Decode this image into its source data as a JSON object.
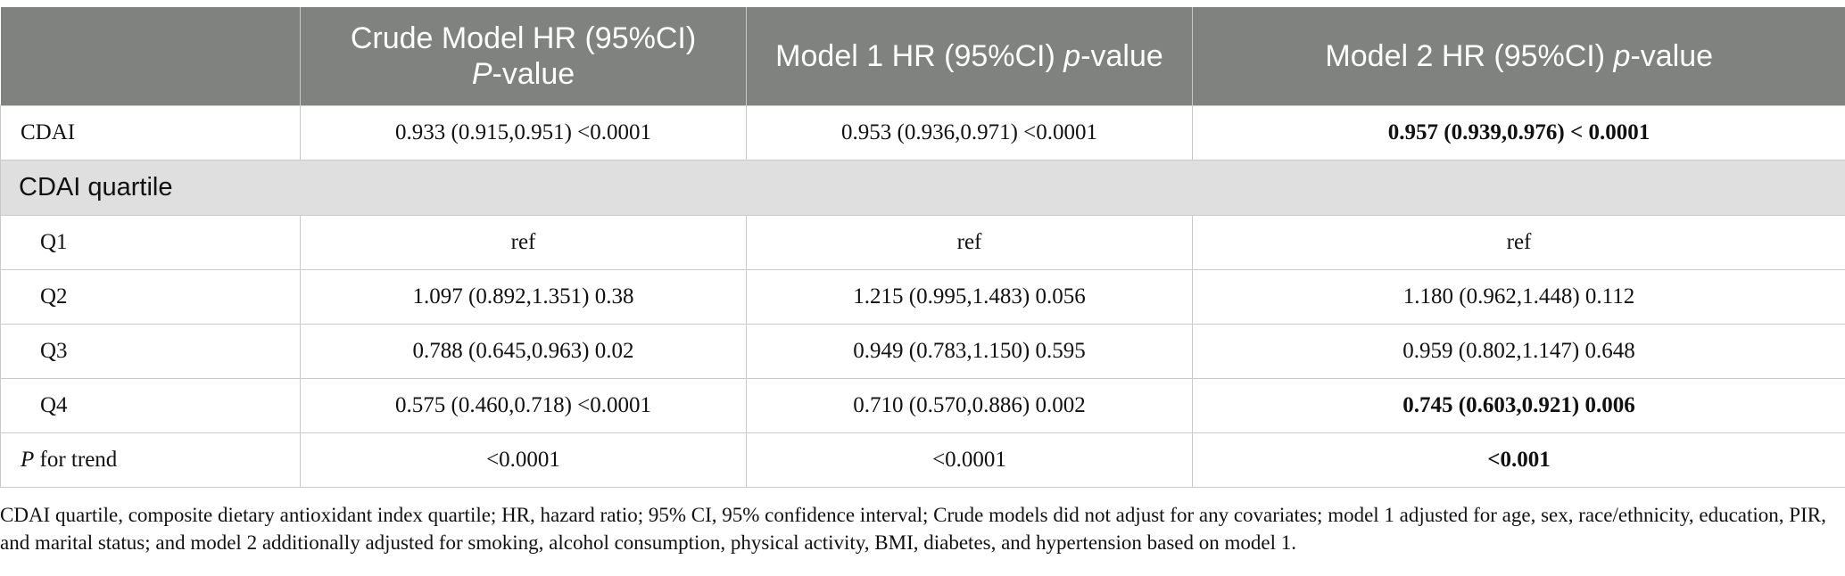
{
  "header": {
    "col0": "",
    "col1_main": "Crude Model HR (95%CI)",
    "col1_p": "P",
    "col1_suffix": "-value",
    "col2_main": "Model 1 HR (95%CI)",
    "col2_p": "p",
    "col2_suffix": "-value",
    "col3_main": "Model 2 HR (95%CI)",
    "col3_p": "p",
    "col3_suffix": "-value"
  },
  "rows": {
    "cdai": {
      "label": "CDAI",
      "crude": "0.933 (0.915,0.951) <0.0001",
      "model1": "0.953 (0.936,0.971) <0.0001",
      "model2": "0.957 (0.939,0.976) < 0.0001"
    },
    "section": "CDAI quartile",
    "q1": {
      "label": "Q1",
      "crude": "ref",
      "model1": "ref",
      "model2": "ref"
    },
    "q2": {
      "label": "Q2",
      "crude": "1.097 (0.892,1.351) 0.38",
      "model1": "1.215 (0.995,1.483) 0.056",
      "model2": "1.180 (0.962,1.448) 0.112"
    },
    "q3": {
      "label": "Q3",
      "crude": "0.788 (0.645,0.963) 0.02",
      "model1": "0.949 (0.783,1.150) 0.595",
      "model2": "0.959 (0.802,1.147) 0.648"
    },
    "q4": {
      "label": "Q4",
      "crude": "0.575 (0.460,0.718) <0.0001",
      "model1": "0.710 (0.570,0.886) 0.002",
      "model2": "0.745 (0.603,0.921) 0.006"
    },
    "trend": {
      "label_p": "P",
      "label_rest": " for trend",
      "crude": "<0.0001",
      "model1": "<0.0001",
      "model2": "<0.001"
    }
  },
  "footnote": "CDAI quartile, composite dietary antioxidant index quartile; HR, hazard ratio; 95% CI, 95% confidence interval; Crude models did not adjust for any covariates; model 1 adjusted for age, sex, race/ethnicity, education, PIR, and marital status; and model 2 additionally adjusted for smoking, alcohol consumption, physical activity, BMI, diabetes, and hypertension based on model 1."
}
